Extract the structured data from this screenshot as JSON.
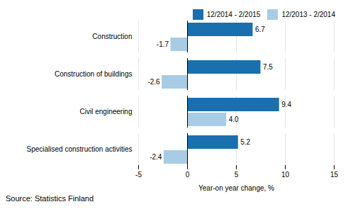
{
  "chart_data": {
    "type": "bar",
    "orientation": "horizontal",
    "categories": [
      "Construction",
      "Construction of buildings",
      "Civil engineering",
      "Specialised construction activities"
    ],
    "series": [
      {
        "name": "12/2014 - 2/2015",
        "color": "#1a6faf",
        "values": [
          6.7,
          7.5,
          9.4,
          5.2
        ],
        "value_labels": [
          "6.7",
          "7.5",
          "9.4",
          "5.2"
        ]
      },
      {
        "name": "12/2013 - 2/2014",
        "color": "#a8cce4",
        "values": [
          -1.7,
          -2.6,
          4.0,
          -2.4
        ],
        "value_labels": [
          "-1.7",
          "-2.6",
          "4.0",
          "-2.4"
        ]
      }
    ],
    "xlabel": "Year-on year change, %",
    "xlim": [
      -5,
      15
    ],
    "xticks": [
      -5,
      0,
      5,
      10,
      15
    ],
    "grid": true,
    "legend": "upper right",
    "data_labels": true,
    "caption": "Source: Statistics Finland"
  }
}
